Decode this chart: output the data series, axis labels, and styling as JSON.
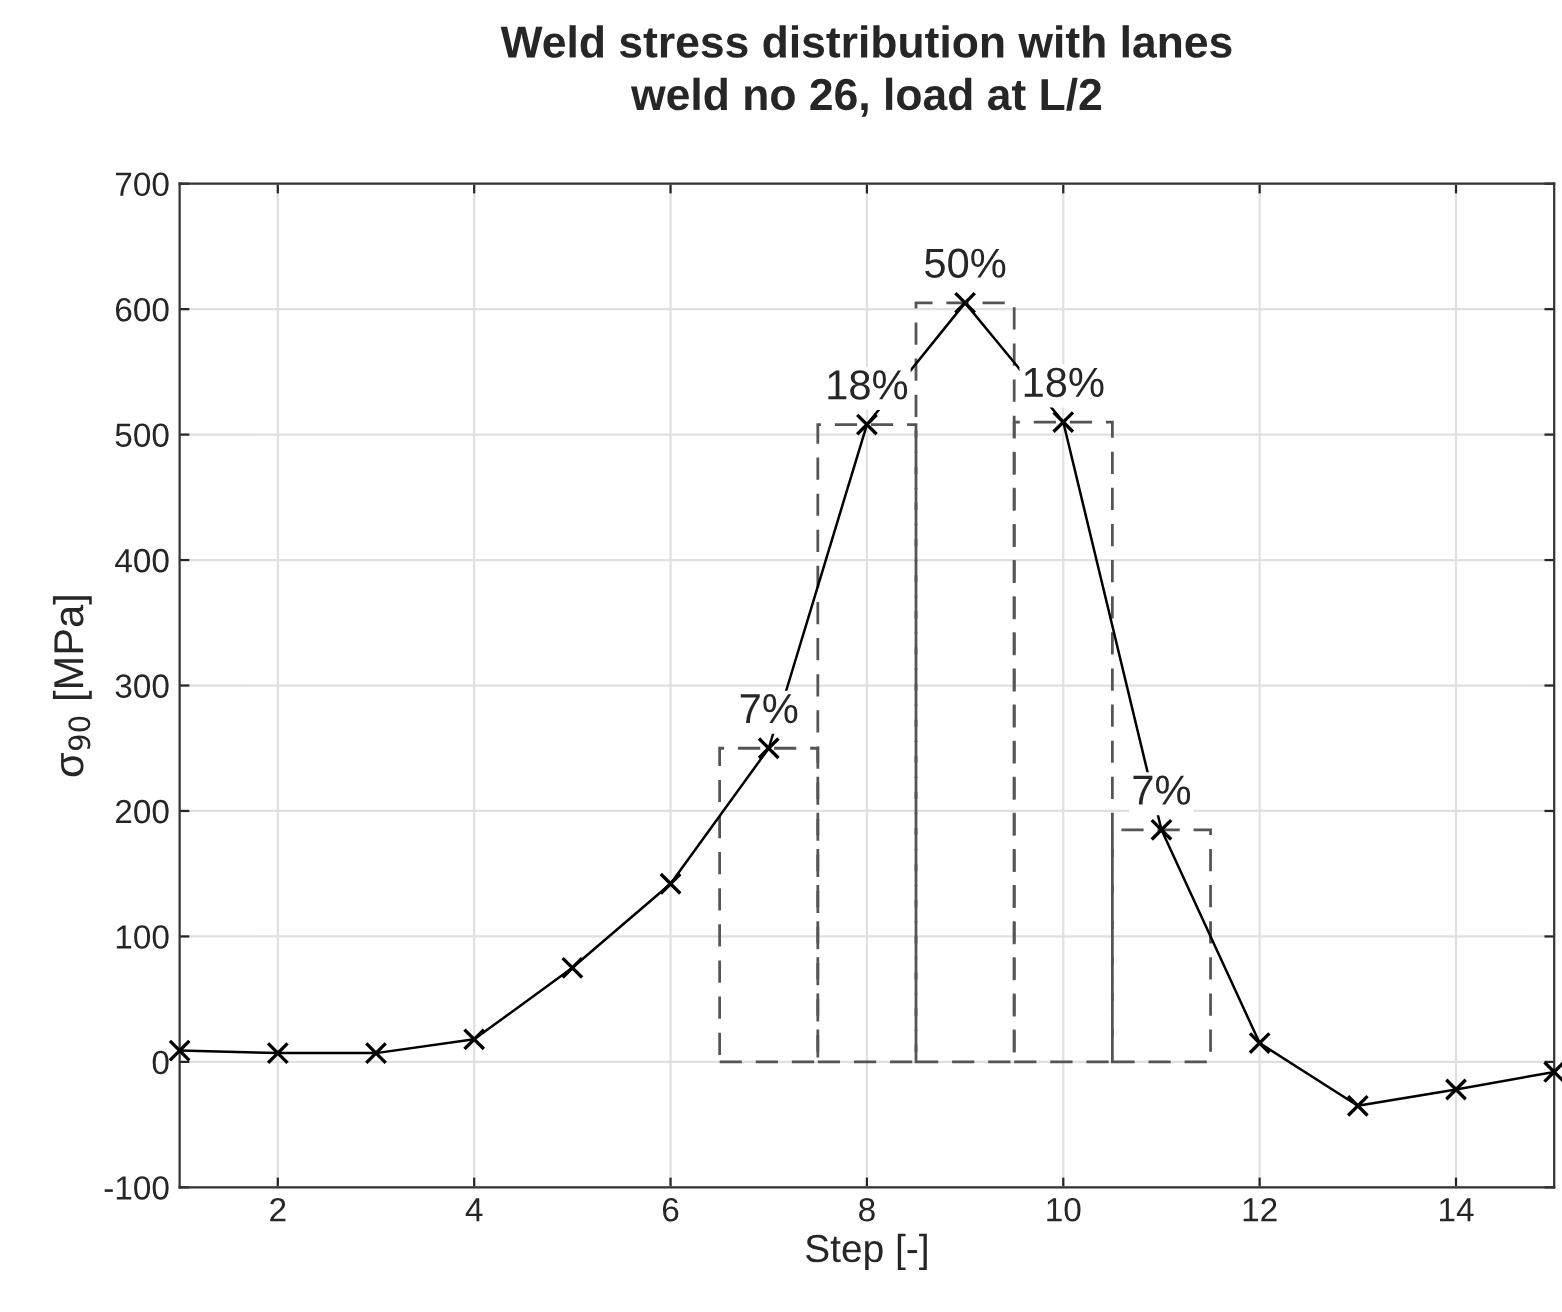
{
  "chart_data": {
    "type": "line",
    "title": "Weld stress distribution with lanes",
    "subtitle": "weld no 26, load at L/2",
    "xlabel": "Step [-]",
    "ylabel": "σ$_{90}$ [MPa]",
    "series": [
      {
        "type": "bar",
        "color": "#555555",
        "line_style": "dashed",
        "x": [
          7,
          8,
          9,
          10,
          11
        ],
        "values": [
          250,
          508,
          605,
          510,
          185
        ]
      },
      {
        "color": "#000000",
        "marker": "cross",
        "line_style": "solid",
        "x": [
          1,
          2,
          3,
          4,
          5,
          6,
          7,
          8,
          9,
          10,
          11,
          12,
          13,
          14,
          15
        ],
        "values": [
          9,
          7,
          7,
          18,
          75,
          142,
          250,
          508,
          605,
          510,
          185,
          15,
          -35,
          -22,
          -8
        ]
      }
    ],
    "xlim": [
      1,
      15
    ],
    "xticks": [
      2,
      4,
      6,
      8,
      10,
      12,
      14
    ],
    "ylim": [
      -100,
      700
    ],
    "yticks": [
      -100,
      0,
      100,
      200,
      300,
      400,
      500,
      600,
      700
    ],
    "grid": true,
    "legend": false,
    "annotations": [
      {
        "text": "7%",
        "x": 7,
        "y": 250
      },
      {
        "text": "18%",
        "x": 8,
        "y": 508
      },
      {
        "text": "50%",
        "x": 9,
        "y": 605
      },
      {
        "text": "18%",
        "x": 10,
        "y": 510
      },
      {
        "text": "7%",
        "x": 11,
        "y": 185
      }
    ]
  }
}
